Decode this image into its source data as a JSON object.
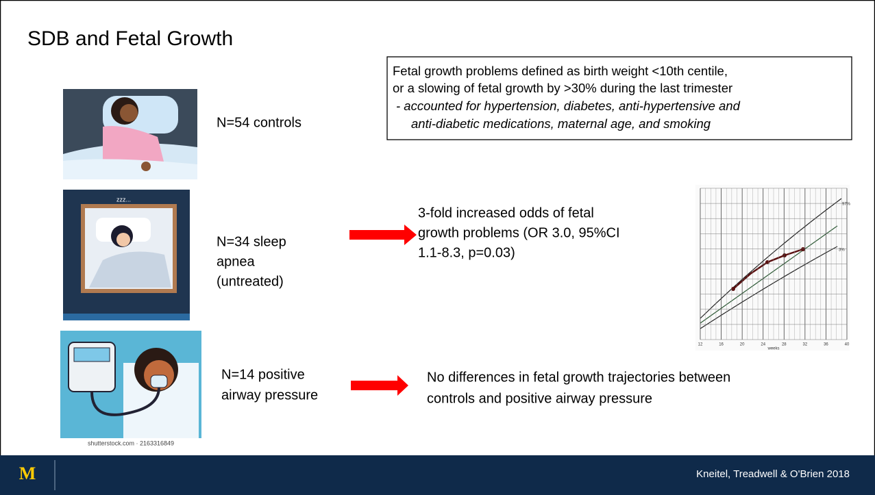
{
  "title": "SDB and Fetal Growth",
  "definition_box": {
    "lines": [
      "Fetal growth problems defined as birth weight <10th centile,",
      "or a slowing of fetal growth by >30% during the last trimester"
    ],
    "note_lines": [
      "- accounted for hypertension, diabetes, anti-hypertensive and",
      "anti-diabetic medications, maternal age, and smoking"
    ]
  },
  "groups": [
    {
      "label_lines": [
        "N=54 controls"
      ]
    },
    {
      "label_lines": [
        "N=34 sleep",
        "apnea",
        "(untreated)"
      ],
      "result_lines": [
        "3-fold increased odds of fetal",
        "growth problems (OR 3.0, 95%CI",
        "1.1-8.3, p=0.03)"
      ]
    },
    {
      "label_lines": [
        "N=14 positive",
        "airway pressure"
      ],
      "result_lines": [
        "No differences in fetal growth trajectories between",
        "controls and positive airway pressure"
      ]
    }
  ],
  "image_captions": {
    "sleep_apnea": "zzz...",
    "cpap": "shutterstock.com · 2163316849"
  },
  "growth_chart": {
    "x_labels": [
      "12",
      "16",
      "20",
      "24",
      "28",
      "32",
      "36",
      "40"
    ],
    "x_title": "weeks",
    "curve_labels": [
      "97%",
      "3%"
    ]
  },
  "footer": {
    "logo": "M",
    "citation": "Kneitel, Treadwell & O'Brien 2018"
  }
}
